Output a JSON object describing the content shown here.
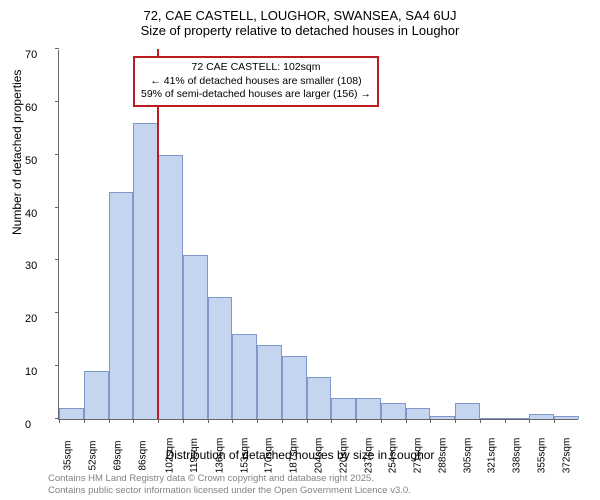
{
  "title_line1": "72, CAE CASTELL, LOUGHOR, SWANSEA, SA4 6UJ",
  "title_line2": "Size of property relative to detached houses in Loughor",
  "y_axis_label": "Number of detached properties",
  "x_axis_label": "Distribution of detached houses by size in Loughor",
  "footer_line1": "Contains HM Land Registry data © Crown copyright and database right 2025.",
  "footer_line2": "Contains public sector information licensed under the Open Government Licence v3.0.",
  "chart": {
    "type": "bar",
    "ylim": [
      0,
      70
    ],
    "ytick_step": 10,
    "yticks": [
      0,
      10,
      20,
      30,
      40,
      50,
      60,
      70
    ],
    "x_categories": [
      "35sqm",
      "52sqm",
      "69sqm",
      "86sqm",
      "102sqm",
      "119sqm",
      "136sqm",
      "153sqm",
      "170sqm",
      "187sqm",
      "204sqm",
      "220sqm",
      "237sqm",
      "254sqm",
      "271sqm",
      "288sqm",
      "305sqm",
      "321sqm",
      "338sqm",
      "355sqm",
      "372sqm"
    ],
    "values": [
      2,
      9,
      43,
      56,
      50,
      31,
      23,
      16,
      14,
      12,
      8,
      4,
      4,
      3,
      2,
      0.5,
      3,
      0,
      0,
      1,
      0.5
    ],
    "bar_color": "#c6d5ef",
    "bar_border_color": "#7f98c9",
    "marker_bin_index": 4,
    "marker_color": "#bd1d20",
    "background_color": "#ffffff",
    "axis_color": "#666666",
    "tick_fontsize": 11,
    "label_fontsize": 12
  },
  "callout": {
    "line1": "72 CAE CASTELL: 102sqm",
    "line2": "← 41% of detached houses are smaller (108)",
    "line3": "59% of semi-detached houses are larger (156) →",
    "border_color": "#bd1d20"
  }
}
